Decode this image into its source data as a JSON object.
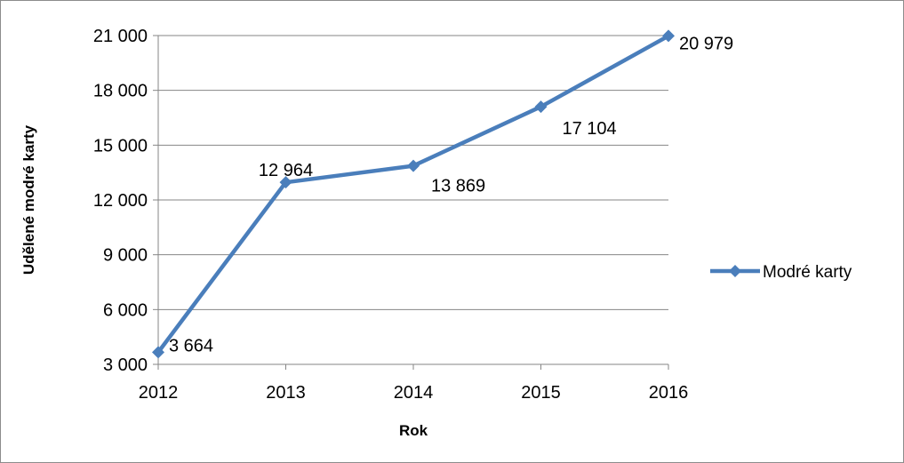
{
  "chart_data": {
    "type": "line",
    "title": "",
    "xlabel": "Rok",
    "ylabel": "Udělené modré karty",
    "categories": [
      "2012",
      "2013",
      "2014",
      "2015",
      "2016"
    ],
    "series": [
      {
        "name": "Modré karty",
        "values": [
          3664,
          12964,
          13869,
          17104,
          20979
        ],
        "labels": [
          "3 664",
          "12 964",
          "13 869",
          "17 104",
          "20 979"
        ],
        "color": "#4a7ebb"
      }
    ],
    "ylim": [
      3000,
      21000
    ],
    "yticks": [
      3000,
      6000,
      9000,
      12000,
      15000,
      18000,
      21000
    ],
    "ytick_labels": [
      "3 000",
      "6 000",
      "9 000",
      "12 000",
      "15 000",
      "18 000",
      "21 000"
    ],
    "grid": true,
    "legend_position": "right",
    "gridline_color": "#868686"
  }
}
